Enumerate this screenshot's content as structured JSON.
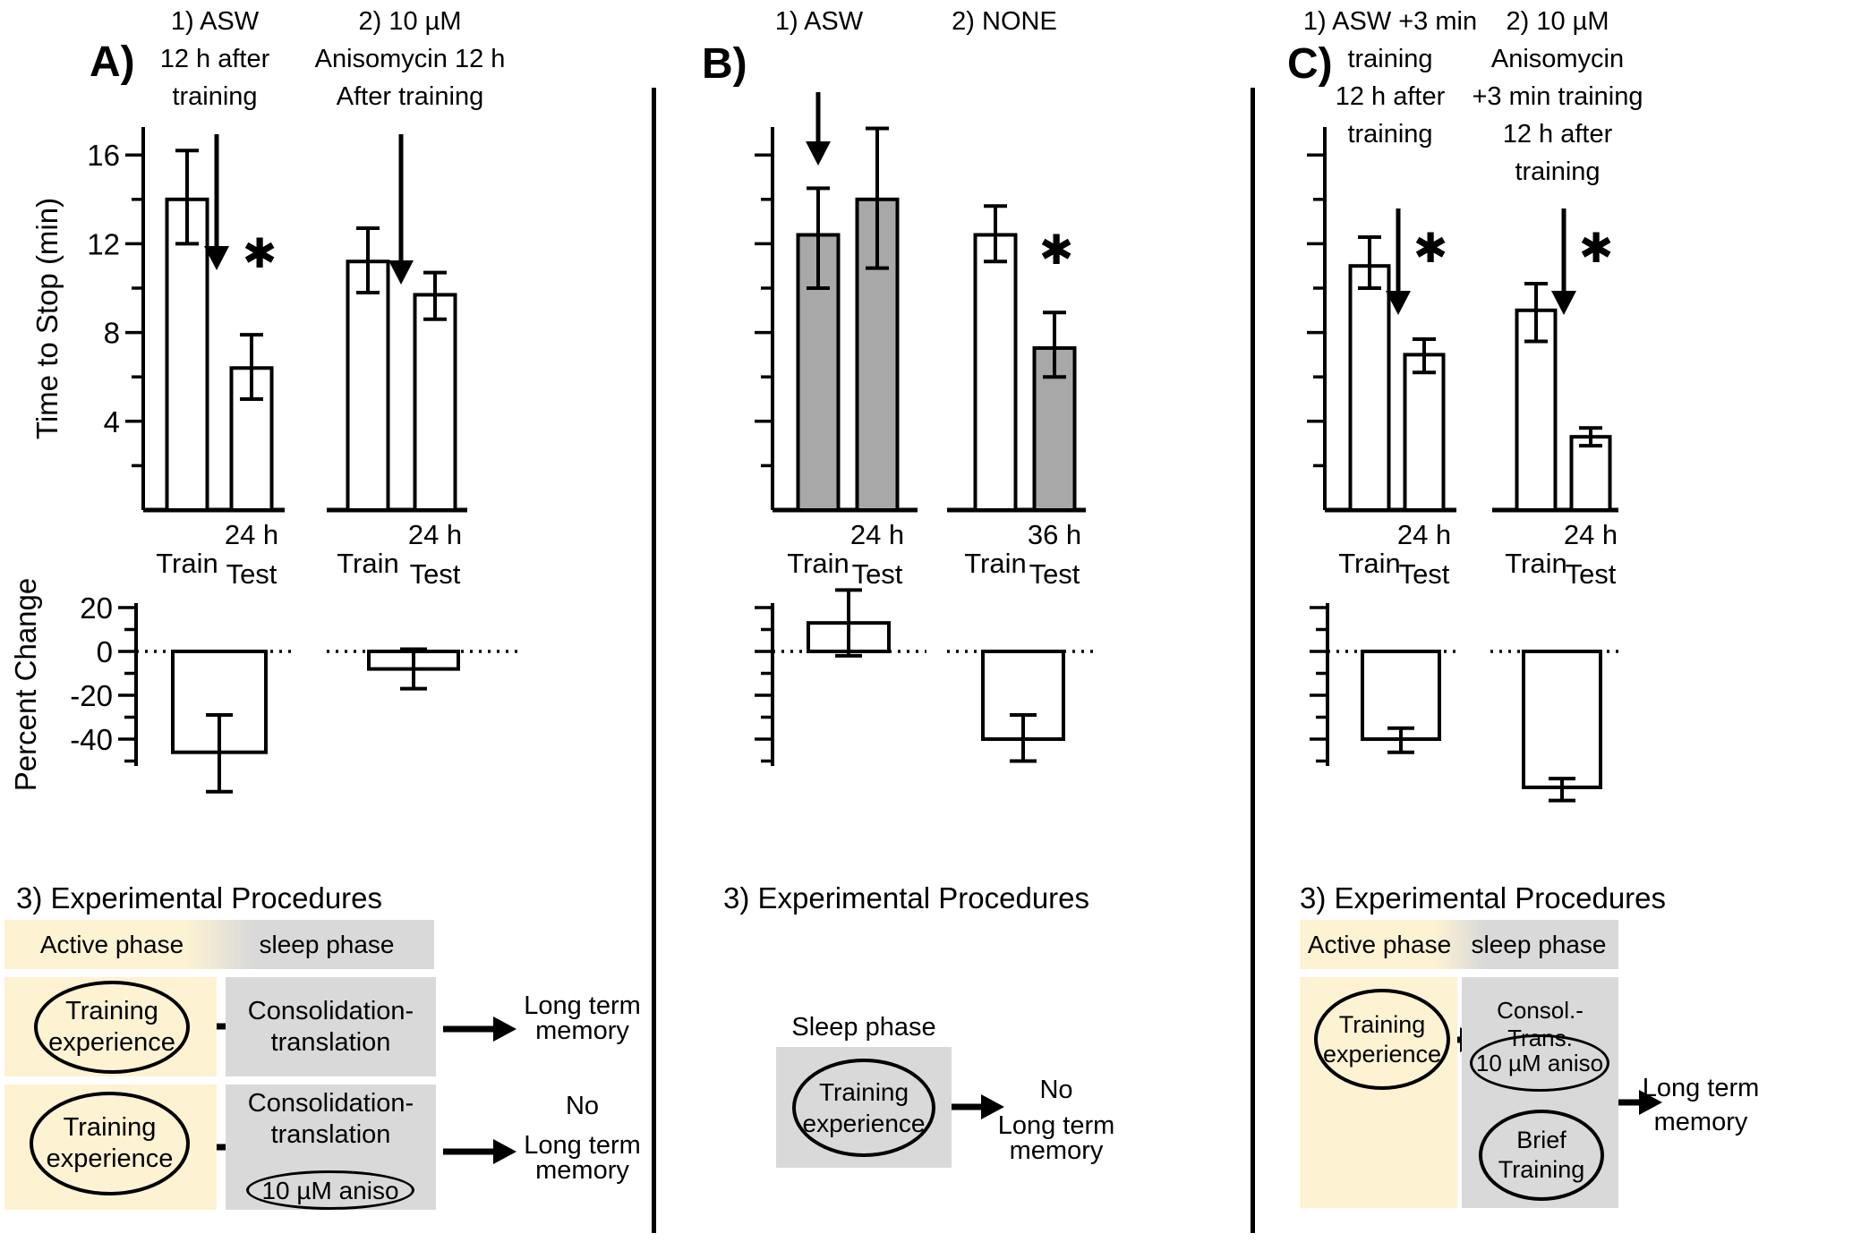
{
  "figure": {
    "letters": [
      "A)",
      "B)",
      "C)"
    ],
    "sig_marker": "✱"
  },
  "colors": {
    "bar_white": "#ffffff",
    "bar_gray": "#a8a8a8",
    "active_phase": "#fdf2d2",
    "sleep_phase": "#d9d9d9",
    "ink": "#000000"
  },
  "chart_data": [
    {
      "panel": "A",
      "type": "bar",
      "y_label": "Time to Stop (min)",
      "ylim": [
        0,
        17
      ],
      "show_tick_labels": true,
      "yticks_labeled": [
        16,
        12,
        8,
        4
      ],
      "yticks_minor": [
        14,
        10,
        6,
        2
      ],
      "groups": [
        {
          "title": [
            "1) ASW",
            "12 h after",
            "training"
          ],
          "categories": [
            [
              "Train"
            ],
            [
              "24 h",
              "Test"
            ]
          ],
          "values": [
            14.0,
            6.4
          ],
          "errors": [
            [
              12.0,
              16.2
            ],
            [
              5.0,
              7.9
            ]
          ],
          "fills": [
            "white",
            "white"
          ],
          "arrow": true,
          "significant": true
        },
        {
          "title": [
            "2) 10 µM",
            "Anisomycin 12 h",
            "After training"
          ],
          "categories": [
            [
              "Train"
            ],
            [
              "24 h",
              "Test"
            ]
          ],
          "values": [
            11.2,
            9.7
          ],
          "errors": [
            [
              9.8,
              12.7
            ],
            [
              8.6,
              10.7
            ]
          ],
          "fills": [
            "white",
            "white"
          ],
          "arrow": true,
          "significant": false
        }
      ]
    },
    {
      "panel": "A",
      "type": "bar",
      "y_label": "Percent Change",
      "ylim": [
        -55,
        25
      ],
      "show_tick_labels": true,
      "yticks_labeled": [
        20,
        0,
        -20,
        -40
      ],
      "yticks_minor": [
        10,
        -10,
        -30,
        -50
      ],
      "groups": [
        {
          "values": [
            -46
          ],
          "errors": [
            [
              -64,
              -29
            ]
          ]
        },
        {
          "values": [
            -8
          ],
          "errors": [
            [
              -17,
              1
            ]
          ]
        }
      ]
    },
    {
      "panel": "B",
      "type": "bar",
      "y_label": "",
      "ylim": [
        0,
        17
      ],
      "show_tick_labels": false,
      "yticks_labeled": [
        16,
        12,
        8,
        4
      ],
      "yticks_minor": [
        14,
        10,
        6,
        2
      ],
      "groups": [
        {
          "title": [
            "1) ASW"
          ],
          "categories": [
            [
              "Train"
            ],
            [
              "24 h",
              "Test"
            ]
          ],
          "values": [
            12.4,
            14.0
          ],
          "errors": [
            [
              10.0,
              14.5
            ],
            [
              10.9,
              17.2
            ]
          ],
          "fills": [
            "gray",
            "gray"
          ],
          "arrow": true,
          "significant": false
        },
        {
          "title": [
            "2) NONE"
          ],
          "categories": [
            [
              "Train"
            ],
            [
              "36 h",
              "Test"
            ]
          ],
          "values": [
            12.4,
            7.3
          ],
          "errors": [
            [
              11.2,
              13.7
            ],
            [
              6.0,
              8.9
            ]
          ],
          "fills": [
            "white",
            "gray"
          ],
          "arrow": false,
          "significant": true
        }
      ]
    },
    {
      "panel": "B",
      "type": "bar",
      "y_label": "",
      "ylim": [
        -55,
        25
      ],
      "show_tick_labels": false,
      "yticks_labeled": [
        20,
        0,
        -20,
        -40
      ],
      "yticks_minor": [
        10,
        -10,
        -30,
        -50
      ],
      "groups": [
        {
          "values": [
            13
          ],
          "errors": [
            [
              -2,
              28
            ]
          ]
        },
        {
          "values": [
            -40
          ],
          "errors": [
            [
              -50,
              -29
            ]
          ]
        }
      ]
    },
    {
      "panel": "C",
      "type": "bar",
      "y_label": "",
      "ylim": [
        0,
        17
      ],
      "show_tick_labels": false,
      "yticks_labeled": [
        16,
        12,
        8,
        4
      ],
      "yticks_minor": [
        14,
        10,
        6,
        2
      ],
      "groups": [
        {
          "title": [
            "1) ASW +3 min",
            "training",
            "12 h after",
            "training"
          ],
          "categories": [
            [
              "Train"
            ],
            [
              "24 h",
              "Test"
            ]
          ],
          "values": [
            11.0,
            7.0
          ],
          "errors": [
            [
              10.0,
              12.3
            ],
            [
              6.2,
              7.7
            ]
          ],
          "fills": [
            "white",
            "white"
          ],
          "arrow": true,
          "significant": true
        },
        {
          "title": [
            "2) 10 µM",
            "Anisomycin",
            "+3 min training",
            "12 h after",
            "training"
          ],
          "categories": [
            [
              "Train"
            ],
            [
              "24 h",
              "Test"
            ]
          ],
          "values": [
            9.0,
            3.3
          ],
          "errors": [
            [
              7.6,
              10.2
            ],
            [
              2.9,
              3.7
            ]
          ],
          "fills": [
            "white",
            "white"
          ],
          "arrow": true,
          "significant": true
        }
      ]
    },
    {
      "panel": "C",
      "type": "bar",
      "y_label": "",
      "ylim": [
        -70,
        25
      ],
      "show_tick_labels": false,
      "yticks_labeled": [
        20,
        0,
        -20,
        -40
      ],
      "yticks_minor": [
        10,
        -10,
        -30,
        -50
      ],
      "groups": [
        {
          "values": [
            -40
          ],
          "errors": [
            [
              -46,
              -35
            ]
          ]
        },
        {
          "values": [
            -62
          ],
          "errors": [
            [
              -68,
              -58
            ]
          ]
        }
      ]
    }
  ],
  "procedures": {
    "a": {
      "heading": "3) Experimental Procedures",
      "header": {
        "left": "Active phase",
        "right": "sleep phase"
      },
      "row1": {
        "ellipse": [
          "Training",
          "experience"
        ],
        "box": [
          "Consolidation-",
          "translation"
        ],
        "result": [
          "Long term",
          "memory"
        ]
      },
      "row2": {
        "ellipse": [
          "Training",
          "experience"
        ],
        "box": [
          "Consolidation-",
          "translation"
        ],
        "inhibitor": "10 µM aniso",
        "result": [
          "No",
          "Long term",
          "memory"
        ]
      }
    },
    "b": {
      "heading": "3) Experimental Procedures",
      "sleep_label": "Sleep phase",
      "ellipse": [
        "Training",
        "experience"
      ],
      "result": [
        "No",
        "Long term",
        "memory"
      ]
    },
    "c": {
      "heading": "3) Experimental Procedures",
      "header": {
        "left": "Active phase",
        "right": "sleep phase"
      },
      "ellipse": [
        "Training",
        "experience"
      ],
      "box_title": "Consol.- Trans.",
      "inhibitor": "10 µM aniso",
      "brief": [
        "Brief",
        "Training"
      ],
      "result": [
        "Long term",
        "memory"
      ]
    }
  }
}
